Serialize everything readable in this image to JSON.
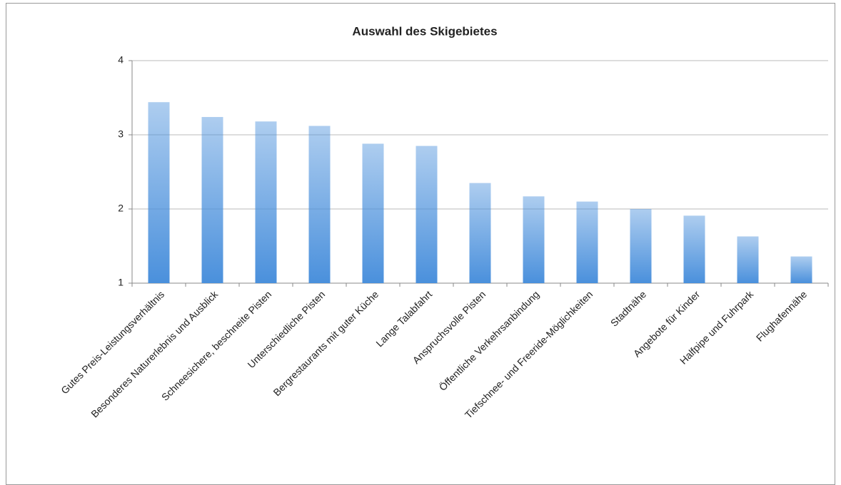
{
  "chart_data": {
    "type": "bar",
    "title": "Auswahl des Skigebietes",
    "categories": [
      "Gutes Preis-Leistungsverhältnis",
      "Besonderes Naturerlebnis und Ausblick",
      "Schneesichere, beschneite Pisten",
      "Unterschiedliche Pisten",
      "Bergrestaurants mit guter Küche",
      "Lange Talabfahrt",
      "Anspruchsvolle Pisten",
      "Öffentliche Verkehrsanbindung",
      "Tiefschnee- und Freeride-Möglichkeiten",
      "Stadtnähe",
      "Angebote für Kinder",
      "Halfpipe und Fuhrpark",
      "Flughafennähe"
    ],
    "values": [
      3.44,
      3.24,
      3.18,
      3.12,
      2.88,
      2.85,
      2.35,
      2.17,
      2.1,
      2.0,
      1.91,
      1.63,
      1.36
    ],
    "color": "#4a90dc",
    "ylim": [
      1,
      4
    ],
    "yticks": [
      1,
      2,
      3,
      4
    ],
    "grid": true
  }
}
